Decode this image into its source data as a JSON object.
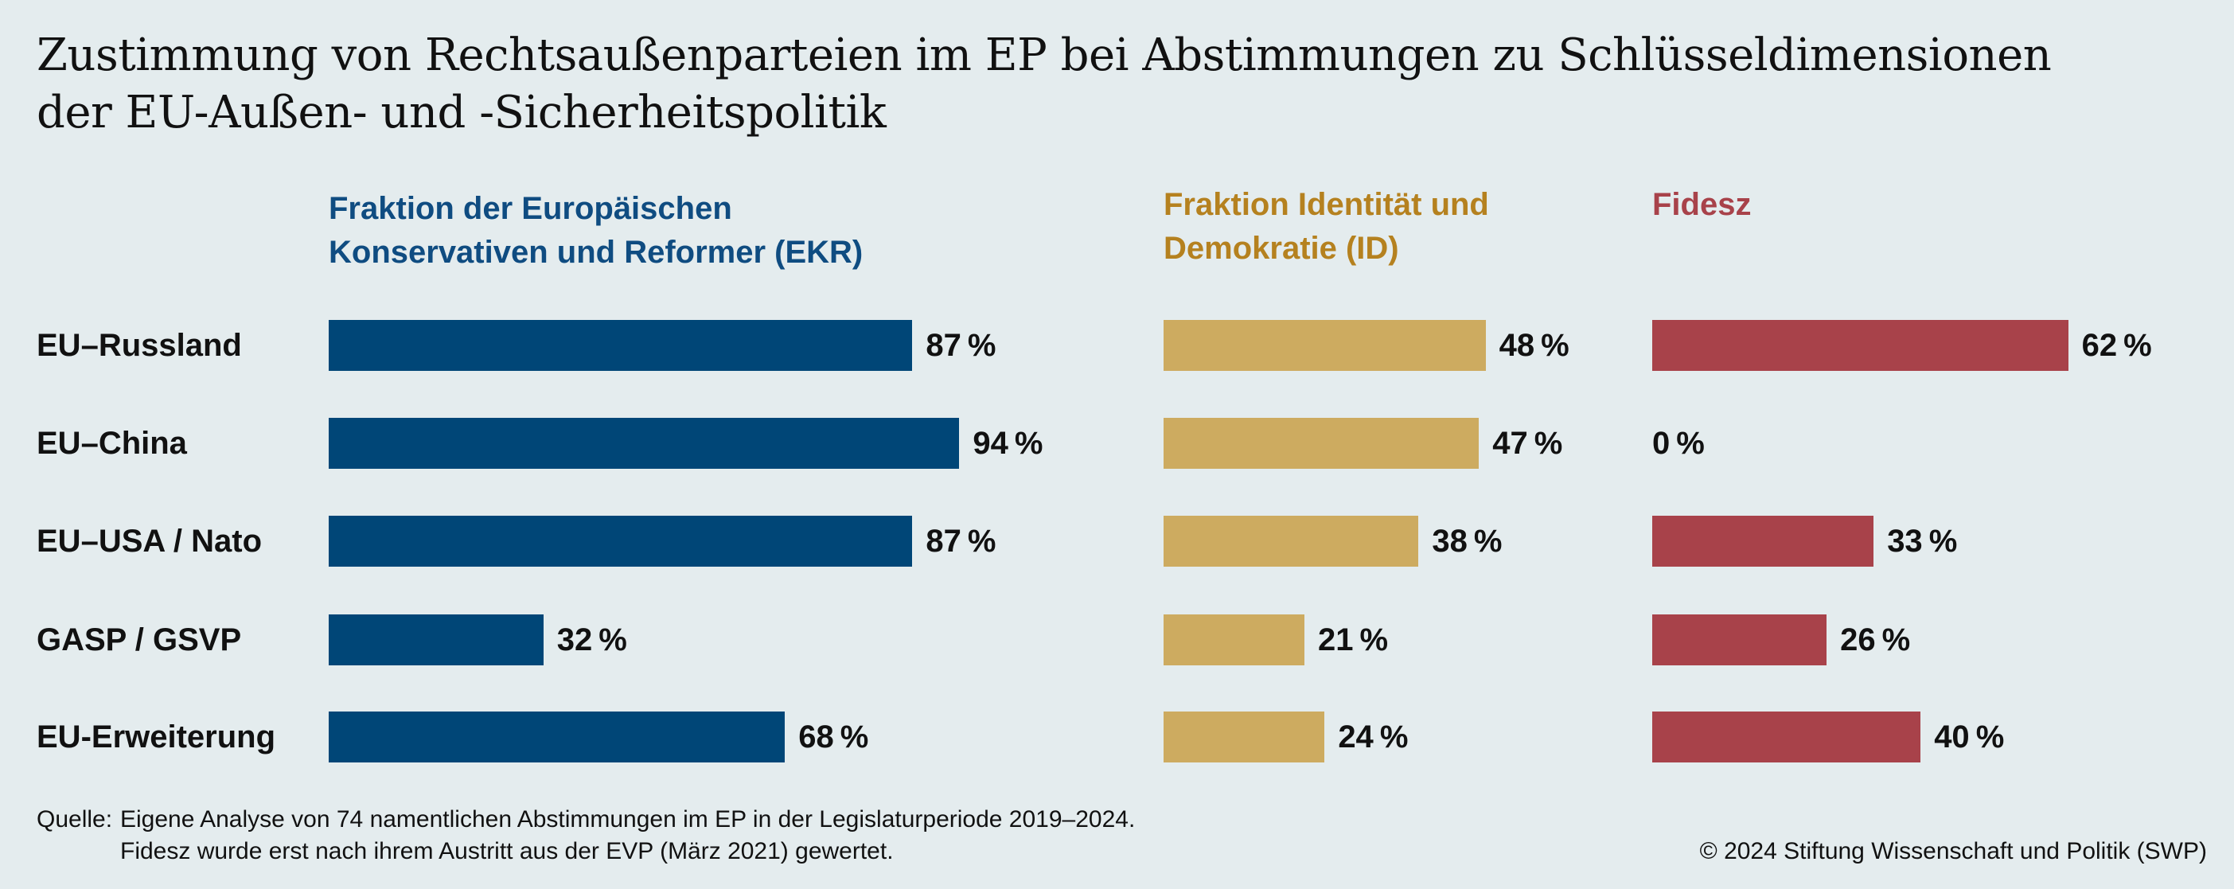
{
  "title": {
    "line1": "Zustimmung von Rechtsaußenparteien im EP bei Abstimmungen zu Schlüsseldimensionen",
    "line2": "der EU-Außen- und -Sicherheitspolitik"
  },
  "chart_data": {
    "type": "bar",
    "orientation": "horizontal",
    "categories": [
      "EU–Russland",
      "EU–China",
      "EU–USA / Nato",
      "GASP / GSVP",
      "EU-Erweiterung"
    ],
    "unit": "%",
    "series": [
      {
        "name_lines": [
          "Fraktion der Europäischen",
          "Konservativen und Reformer (EKR)"
        ],
        "color": "#004677",
        "values": [
          87,
          94,
          87,
          32,
          68
        ]
      },
      {
        "name_lines": [
          "Fraktion Identität und",
          "Demokratie (ID)"
        ],
        "color": "#cdab60",
        "values": [
          48,
          47,
          38,
          21,
          24
        ]
      },
      {
        "name_lines": [
          "Fidesz"
        ],
        "color": "#a8424a",
        "values": [
          62,
          0,
          33,
          26,
          40
        ]
      }
    ],
    "grid": false,
    "legend": "panel headers above each series"
  },
  "footer": {
    "source_label": "Quelle:",
    "source_line1": "Eigene Analyse von 74 namentlichen Abstimmungen im EP in der Legislaturperiode 2019–2024.",
    "source_line2": "Fidesz wurde erst nach ihrem Austritt aus der EVP (März 2021) gewertet.",
    "copyright": "© 2024 Stiftung Wissenschaft und Politik (SWP)"
  }
}
